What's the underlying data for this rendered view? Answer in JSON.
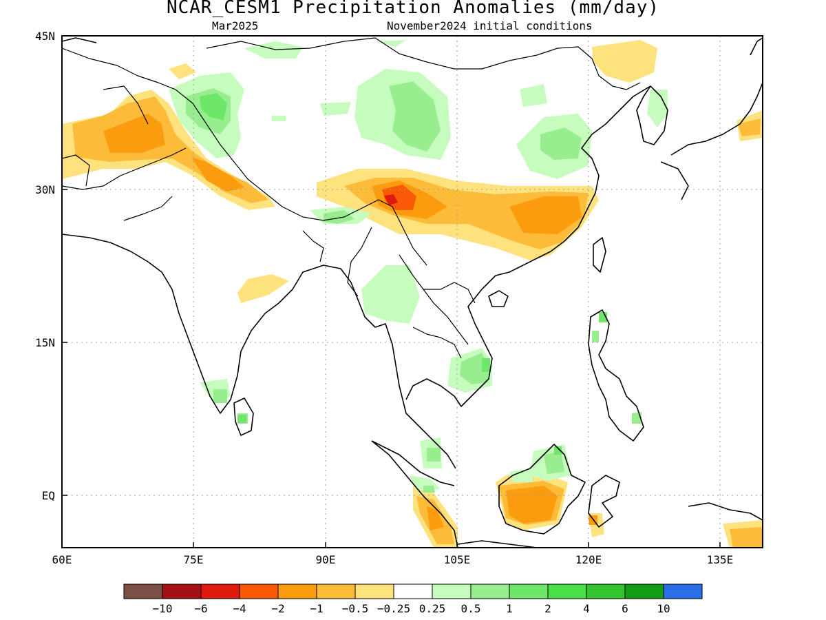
{
  "title": "NCAR_CESM1 Precipitation Anomalies (mm/day)",
  "subtitle_left": "Mar2025",
  "subtitle_right": "November2024 initial conditions",
  "map": {
    "lon_ticks": [
      "60E",
      "75E",
      "90E",
      "105E",
      "120E",
      "135E"
    ],
    "lat_ticks": [
      "45N",
      "30N",
      "15N",
      "EQ"
    ],
    "lon_range": [
      60,
      140
    ],
    "lat_range": [
      -5,
      45
    ],
    "gridlines": "dotted"
  },
  "colorbar": {
    "colors": [
      "#7b4f45",
      "#a50f15",
      "#dd1a0b",
      "#fa5a05",
      "#fb9b0e",
      "#fdbb3a",
      "#fee27e",
      "#ffffff",
      "#c6fcbd",
      "#98ee8f",
      "#6ee66a",
      "#4ade48",
      "#33c42f",
      "#119e16",
      "#2a6fe8"
    ],
    "labels": [
      "-10",
      "-6",
      "-4",
      "-2",
      "-1",
      "-0.5",
      "-0.25",
      "0.25",
      "0.5",
      "1",
      "2",
      "4",
      "6",
      "10"
    ]
  }
}
